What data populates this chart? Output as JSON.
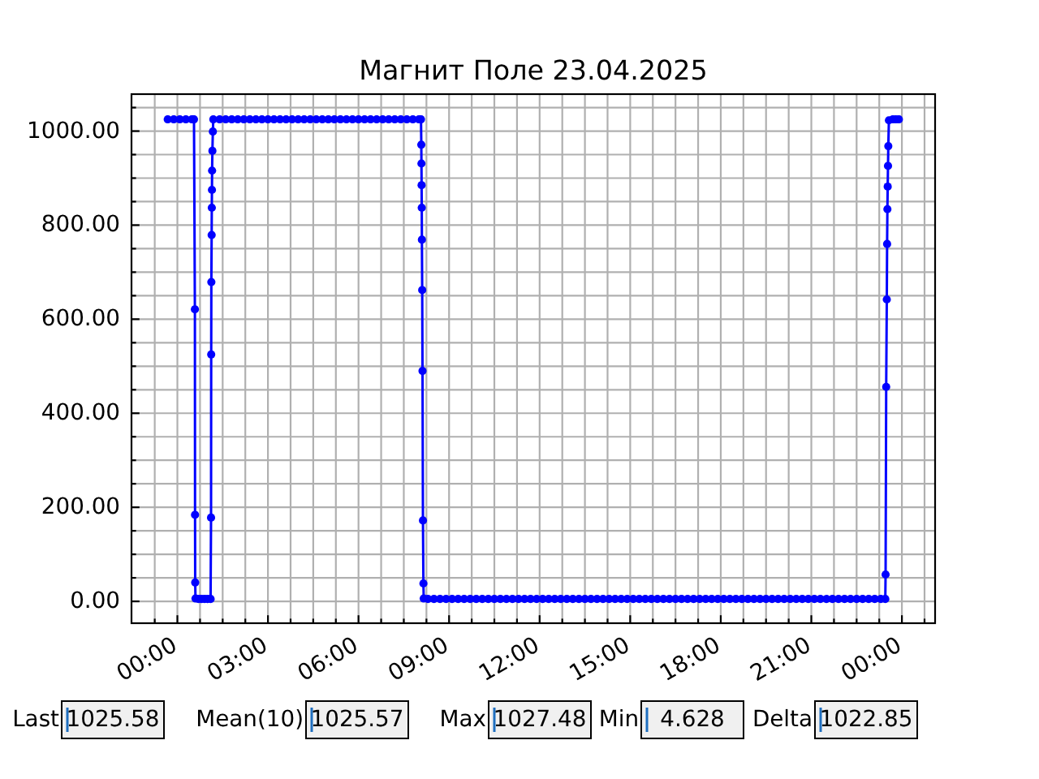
{
  "chart_data": {
    "type": "line",
    "title": "Магнит Поле 23.04.2025",
    "color": "#0000ff",
    "marker": "circle",
    "line_style": "solid",
    "grid": true,
    "xlim": [
      -1.52,
      25.1
    ],
    "ylim": [
      -46.5,
      1078.6
    ],
    "xticks": [
      {
        "value": -0.75,
        "label": null
      },
      {
        "value": 0,
        "label": "00:00"
      },
      {
        "value": 0.75,
        "label": null
      },
      {
        "value": 1.5,
        "label": null
      },
      {
        "value": 2.25,
        "label": null
      },
      {
        "value": 3,
        "label": "03:00"
      },
      {
        "value": 3.75,
        "label": null
      },
      {
        "value": 4.5,
        "label": null
      },
      {
        "value": 5.25,
        "label": null
      },
      {
        "value": 6,
        "label": "06:00"
      },
      {
        "value": 6.75,
        "label": null
      },
      {
        "value": 7.5,
        "label": null
      },
      {
        "value": 8.25,
        "label": null
      },
      {
        "value": 9,
        "label": "09:00"
      },
      {
        "value": 9.75,
        "label": null
      },
      {
        "value": 10.5,
        "label": null
      },
      {
        "value": 11.25,
        "label": null
      },
      {
        "value": 12,
        "label": "12:00"
      },
      {
        "value": 12.75,
        "label": null
      },
      {
        "value": 13.5,
        "label": null
      },
      {
        "value": 14.25,
        "label": null
      },
      {
        "value": 15,
        "label": "15:00"
      },
      {
        "value": 15.75,
        "label": null
      },
      {
        "value": 16.5,
        "label": null
      },
      {
        "value": 17.25,
        "label": null
      },
      {
        "value": 18,
        "label": "18:00"
      },
      {
        "value": 18.75,
        "label": null
      },
      {
        "value": 19.5,
        "label": null
      },
      {
        "value": 20.25,
        "label": null
      },
      {
        "value": 21,
        "label": "21:00"
      },
      {
        "value": 21.75,
        "label": null
      },
      {
        "value": 22.5,
        "label": null
      },
      {
        "value": 23.25,
        "label": null
      },
      {
        "value": 24,
        "label": "00:00"
      },
      {
        "value": 24.75,
        "label": null
      }
    ],
    "yticks": [
      {
        "value": 0,
        "label": "0.00"
      },
      {
        "value": 50,
        "label": null
      },
      {
        "value": 100,
        "label": null
      },
      {
        "value": 150,
        "label": null
      },
      {
        "value": 200,
        "label": "200.00"
      },
      {
        "value": 250,
        "label": null
      },
      {
        "value": 300,
        "label": null
      },
      {
        "value": 350,
        "label": null
      },
      {
        "value": 400,
        "label": "400.00"
      },
      {
        "value": 450,
        "label": null
      },
      {
        "value": 500,
        "label": null
      },
      {
        "value": 550,
        "label": null
      },
      {
        "value": 600,
        "label": "600.00"
      },
      {
        "value": 650,
        "label": null
      },
      {
        "value": 700,
        "label": null
      },
      {
        "value": 750,
        "label": null
      },
      {
        "value": 800,
        "label": "800.00"
      },
      {
        "value": 850,
        "label": null
      },
      {
        "value": 900,
        "label": null
      },
      {
        "value": 950,
        "label": null
      },
      {
        "value": 1000,
        "label": "1000.00"
      },
      {
        "value": 1050,
        "label": null
      }
    ],
    "x": [
      -0.32,
      -0.12,
      0.08,
      0.28,
      0.48,
      0.55,
      0.58,
      0.585,
      0.59,
      0.6,
      0.7,
      0.8,
      0.9,
      1.0,
      1.1,
      1.115,
      1.12,
      1.125,
      1.135,
      1.14,
      1.145,
      1.15,
      1.16,
      1.175,
      1.19,
      1.4,
      1.6,
      1.8,
      2.0,
      2.2,
      2.4,
      2.6,
      2.8,
      3.0,
      3.2,
      3.4,
      3.6,
      3.8,
      4.0,
      4.2,
      4.4,
      4.6,
      4.8,
      5.0,
      5.2,
      5.4,
      5.6,
      5.8,
      6.0,
      6.2,
      6.4,
      6.6,
      6.8,
      7.0,
      7.2,
      7.4,
      7.6,
      7.8,
      8.0,
      8.07,
      8.08,
      8.085,
      8.09,
      8.095,
      8.1,
      8.11,
      8.12,
      8.135,
      8.15,
      8.16,
      8.3,
      8.5,
      8.7,
      8.9,
      9.1,
      9.3,
      9.5,
      9.7,
      9.9,
      10.1,
      10.3,
      10.5,
      10.7,
      10.9,
      11.1,
      11.3,
      11.5,
      11.7,
      11.9,
      12.1,
      12.3,
      12.5,
      12.7,
      12.9,
      13.1,
      13.3,
      13.5,
      13.7,
      13.9,
      14.1,
      14.3,
      14.5,
      14.7,
      14.9,
      15.1,
      15.3,
      15.5,
      15.7,
      15.9,
      16.1,
      16.3,
      16.5,
      16.7,
      16.9,
      17.1,
      17.3,
      17.5,
      17.7,
      17.9,
      18.1,
      18.3,
      18.5,
      18.7,
      18.9,
      19.1,
      19.3,
      19.5,
      19.7,
      19.9,
      20.1,
      20.3,
      20.5,
      20.7,
      20.9,
      21.1,
      21.3,
      21.5,
      21.7,
      21.9,
      22.1,
      22.3,
      22.5,
      22.7,
      22.9,
      23.1,
      23.3,
      23.45,
      23.46,
      23.48,
      23.5,
      23.51,
      23.52,
      23.53,
      23.54,
      23.55,
      23.57,
      23.7,
      23.8,
      23.9
    ],
    "values": [
      1025,
      1025,
      1025,
      1025,
      1025,
      1025,
      621,
      184,
      40,
      6,
      5,
      5,
      5,
      5,
      5,
      178,
      525,
      679,
      779,
      837,
      875,
      916,
      958,
      999,
      1025,
      1025,
      1025,
      1025,
      1025,
      1025,
      1025,
      1025,
      1025,
      1025,
      1025,
      1025,
      1025,
      1025,
      1025,
      1025,
      1025,
      1025,
      1025,
      1025,
      1025,
      1025,
      1025,
      1025,
      1025,
      1025,
      1025,
      1025,
      1025,
      1025,
      1025,
      1025,
      1025,
      1025,
      1025,
      1025,
      971,
      931,
      885,
      837,
      769,
      662,
      490,
      172,
      38,
      6,
      5,
      5,
      5,
      5,
      5,
      5,
      5,
      5,
      5,
      5,
      5,
      5,
      5,
      5,
      5,
      5,
      5,
      5,
      5,
      5,
      5,
      5,
      5,
      5,
      5,
      5,
      5,
      5,
      5,
      5,
      5,
      5,
      5,
      5,
      5,
      5,
      5,
      5,
      5,
      5,
      5,
      5,
      5,
      5,
      5,
      5,
      5,
      5,
      5,
      5,
      5,
      5,
      5,
      5,
      5,
      5,
      5,
      5,
      5,
      5,
      5,
      5,
      5,
      5,
      5,
      5,
      5,
      5,
      5,
      5,
      5,
      5,
      5,
      5,
      5,
      5,
      5,
      57,
      456,
      642,
      760,
      834,
      882,
      926,
      968,
      1023,
      1025,
      1025,
      1025
    ],
    "annotations": [
      "Last",
      "1025.58",
      "Mean(10)",
      "1025.57",
      "Max",
      "1027.48",
      "Min",
      "4.628",
      "Delta",
      "1022.85"
    ]
  }
}
